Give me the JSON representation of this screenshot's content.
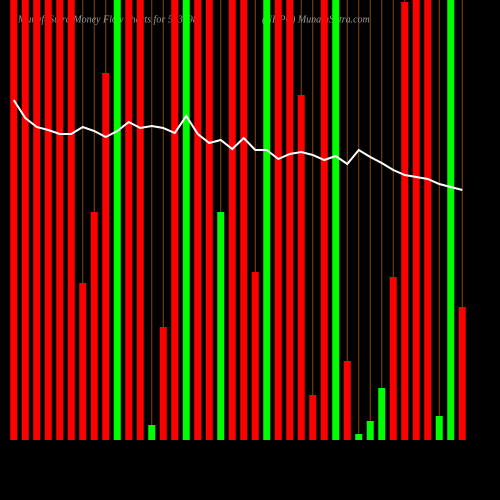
{
  "chart_data": {
    "type": "bar",
    "title": "MunafaSutra Money Flow charts for 533098",
    "subtitle": "(NHPC) MunafaSutra.com",
    "ylim": [
      0,
      440
    ],
    "grid": true,
    "grid_color": "#8b4513",
    "bars": {
      "values": [
        440,
        440,
        440,
        440,
        440,
        440,
        157,
        228,
        367,
        440,
        440,
        440,
        15,
        113,
        440,
        440,
        440,
        440,
        228,
        440,
        440,
        168,
        440,
        440,
        440,
        345,
        45,
        440,
        440,
        79,
        6,
        19,
        52,
        163,
        438,
        440,
        440,
        24,
        440,
        133
      ],
      "colors": [
        "#ff0000",
        "#ff0000",
        "#ff0000",
        "#ff0000",
        "#ff0000",
        "#ff0000",
        "#ff0000",
        "#ff0000",
        "#ff0000",
        "#00ff00",
        "#ff0000",
        "#ff0000",
        "#00ff00",
        "#ff0000",
        "#ff0000",
        "#00ff00",
        "#ff0000",
        "#ff0000",
        "#00ff00",
        "#ff0000",
        "#ff0000",
        "#ff0000",
        "#00ff00",
        "#ff0000",
        "#ff0000",
        "#ff0000",
        "#ff0000",
        "#ff0000",
        "#00ff00",
        "#ff0000",
        "#00ff00",
        "#00ff00",
        "#00ff00",
        "#ff0000",
        "#ff0000",
        "#ff0000",
        "#ff0000",
        "#00ff00",
        "#00ff00",
        "#ff0000"
      ]
    },
    "line": {
      "color": "#ffffff",
      "values": [
        340,
        322,
        313,
        310,
        306,
        306,
        313,
        309,
        303,
        309,
        318,
        312,
        314,
        312,
        307,
        324,
        306,
        297,
        300,
        291,
        302,
        290,
        290,
        281,
        286,
        288,
        285,
        280,
        284,
        276,
        290,
        283,
        277,
        270,
        265,
        263,
        261,
        256,
        253,
        250
      ]
    }
  }
}
